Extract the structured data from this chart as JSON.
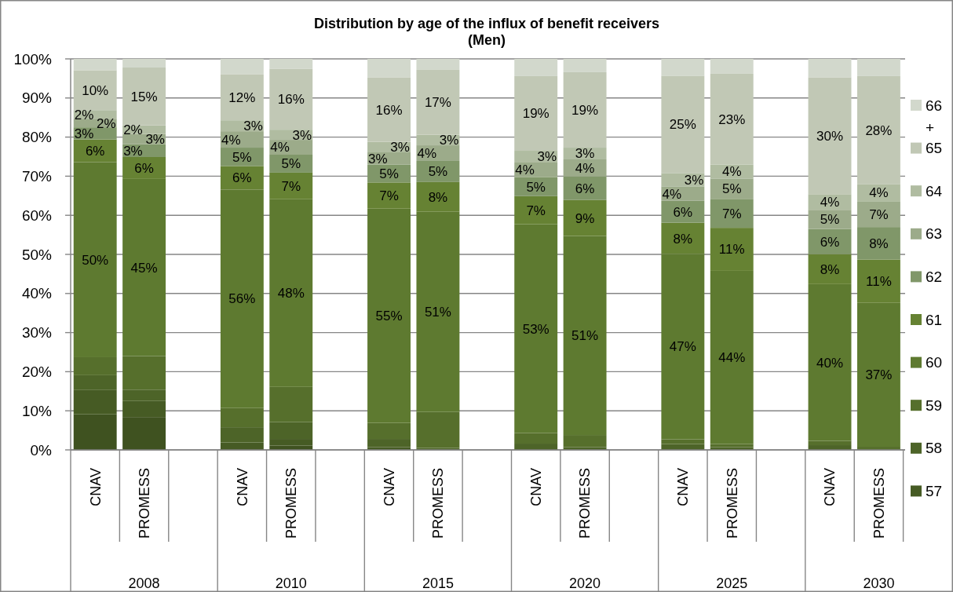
{
  "chart_data": {
    "type": "bar",
    "title": "Distribution by age of the influx of benefit receivers",
    "subtitle": "(Men)",
    "stacked": true,
    "grid": "y",
    "legend": "right",
    "categories": [
      "CNAV",
      "PROMESS",
      null,
      "CNAV",
      "PROMESS",
      null,
      "CNAV",
      "PROMESS",
      null,
      "CNAV",
      "PROMESS",
      null,
      "CNAV",
      "PROMESS",
      null,
      "CNAV",
      "PROMESS",
      null
    ],
    "annotations": [
      "2008",
      "2010",
      "2015",
      "2020",
      "2025",
      "2030"
    ],
    "ylim": [
      0,
      100
    ],
    "yticks": [
      {
        "value": 0,
        "label": "0%"
      },
      {
        "value": 10,
        "label": "10%"
      },
      {
        "value": 20,
        "label": "20%"
      },
      {
        "value": 30,
        "label": "30%"
      },
      {
        "value": 40,
        "label": "40%"
      },
      {
        "value": 50,
        "label": "50%"
      },
      {
        "value": 60,
        "label": "60%"
      },
      {
        "value": 70,
        "label": "70%"
      },
      {
        "value": 80,
        "label": "80%"
      },
      {
        "value": 90,
        "label": "90%"
      },
      {
        "value": 100,
        "label": "100%"
      }
    ],
    "series": [
      {
        "color": "#3f5220",
        "values": [
          9.1,
          8.4,
          null,
          null,
          1.1,
          null,
          null,
          null,
          null,
          null,
          null,
          null,
          null,
          null,
          null,
          null,
          null,
          null
        ]
      },
      {
        "name": "57",
        "color": "#465b24",
        "values": [
          6.2,
          4.1,
          null,
          1.9,
          1.7,
          null,
          0.7,
          null,
          null,
          null,
          null,
          null,
          null,
          null,
          null,
          null,
          null,
          null
        ]
      },
      {
        "name": "58",
        "color": "#4d6428",
        "values": [
          3.8,
          2.9,
          null,
          3.9,
          4.3,
          null,
          2.1,
          0.5,
          null,
          1.6,
          0.7,
          null,
          1.5,
          0.7,
          null,
          1.2,
          null,
          null
        ]
      },
      {
        "name": "59",
        "color": "#566f2c",
        "values": [
          4.6,
          8.6,
          null,
          4.9,
          9.0,
          null,
          4.1,
          9.2,
          null,
          2.7,
          3.1,
          null,
          1.2,
          0.8,
          null,
          1.1,
          0.8,
          null
        ]
      },
      {
        "name": "60",
        "color": "#5e7a30",
        "values": [
          49.9,
          45.3,
          null,
          55.9,
          48.0,
          null,
          54.8,
          51.2,
          null,
          53.4,
          50.9,
          null,
          47.4,
          44.3,
          null,
          40.1,
          36.8,
          null
        ],
        "value_labels": [
          "50%",
          "45%",
          null,
          "56%",
          "48%",
          null,
          "55%",
          "51%",
          null,
          "53%",
          "51%",
          null,
          "47%",
          "44%",
          null,
          "40%",
          "37%",
          null
        ]
      },
      {
        "name": "61",
        "color": "#668233",
        "values": [
          5.8,
          5.6,
          null,
          6.0,
          6.8,
          null,
          6.7,
          7.6,
          null,
          7.2,
          9.2,
          null,
          8.0,
          11.0,
          null,
          7.7,
          11.1,
          null
        ],
        "value_labels": [
          "6%",
          "6%",
          null,
          "6%",
          "7%",
          null,
          "7%",
          "8%",
          null,
          "7%",
          "9%",
          null,
          "8%",
          "11%",
          null,
          "8%",
          "11%",
          null
        ]
      },
      {
        "name": "62",
        "color": "#809769",
        "values": [
          3.1,
          3.3,
          null,
          4.7,
          4.6,
          null,
          4.6,
          5.4,
          null,
          4.9,
          6.0,
          null,
          5.6,
          7.4,
          null,
          6.4,
          8.3,
          null
        ],
        "value_labels": [
          "3%",
          "3%",
          null,
          "5%",
          "5%",
          null,
          "5%",
          "5%",
          null,
          "5%",
          "6%",
          null,
          "6%",
          "7%",
          null,
          "6%",
          "8%",
          null
        ]
      },
      {
        "name": "63",
        "color": "#9cab8a",
        "values": [
          2.2,
          2.6,
          null,
          4.2,
          3.8,
          null,
          3.1,
          4.0,
          null,
          3.7,
          4.4,
          null,
          3.7,
          5.2,
          null,
          4.9,
          6.6,
          null
        ],
        "value_labels": [
          "2%",
          "3%",
          null,
          "4%",
          "4%",
          null,
          "3%",
          "4%",
          null,
          "4%",
          "4%",
          null,
          "4%",
          "5%",
          null,
          "5%",
          "7%",
          null
        ]
      },
      {
        "name": "64",
        "color": "#b0bca1",
        "values": [
          2.2,
          2.2,
          null,
          2.8,
          2.6,
          null,
          2.7,
          2.7,
          null,
          3.0,
          3.0,
          null,
          3.4,
          3.6,
          null,
          4.0,
          4.4,
          null
        ],
        "value_labels": [
          "2%",
          "2%",
          null,
          "3%",
          "3%",
          null,
          "3%",
          "3%",
          null,
          "3%",
          "3%",
          null,
          "3%",
          "4%",
          null,
          "4%",
          "4%",
          null
        ]
      },
      {
        "name": "65",
        "color": "#c1c8b5",
        "values": [
          10.2,
          14.8,
          null,
          11.8,
          15.6,
          null,
          16.4,
          16.6,
          null,
          19.1,
          19.3,
          null,
          24.9,
          23.2,
          null,
          29.9,
          27.6,
          null
        ],
        "value_labels": [
          "10%",
          "15%",
          null,
          "12%",
          "16%",
          null,
          "16%",
          "17%",
          null,
          "19%",
          "19%",
          null,
          "25%",
          "23%",
          null,
          "30%",
          "28%",
          null
        ]
      },
      {
        "name": "66 +",
        "color": "#d2d8cc",
        "values": [
          2.9,
          2.2,
          null,
          3.9,
          2.5,
          null,
          4.8,
          2.8,
          null,
          4.4,
          3.4,
          null,
          4.3,
          3.8,
          null,
          4.7,
          4.4,
          null
        ]
      }
    ]
  }
}
